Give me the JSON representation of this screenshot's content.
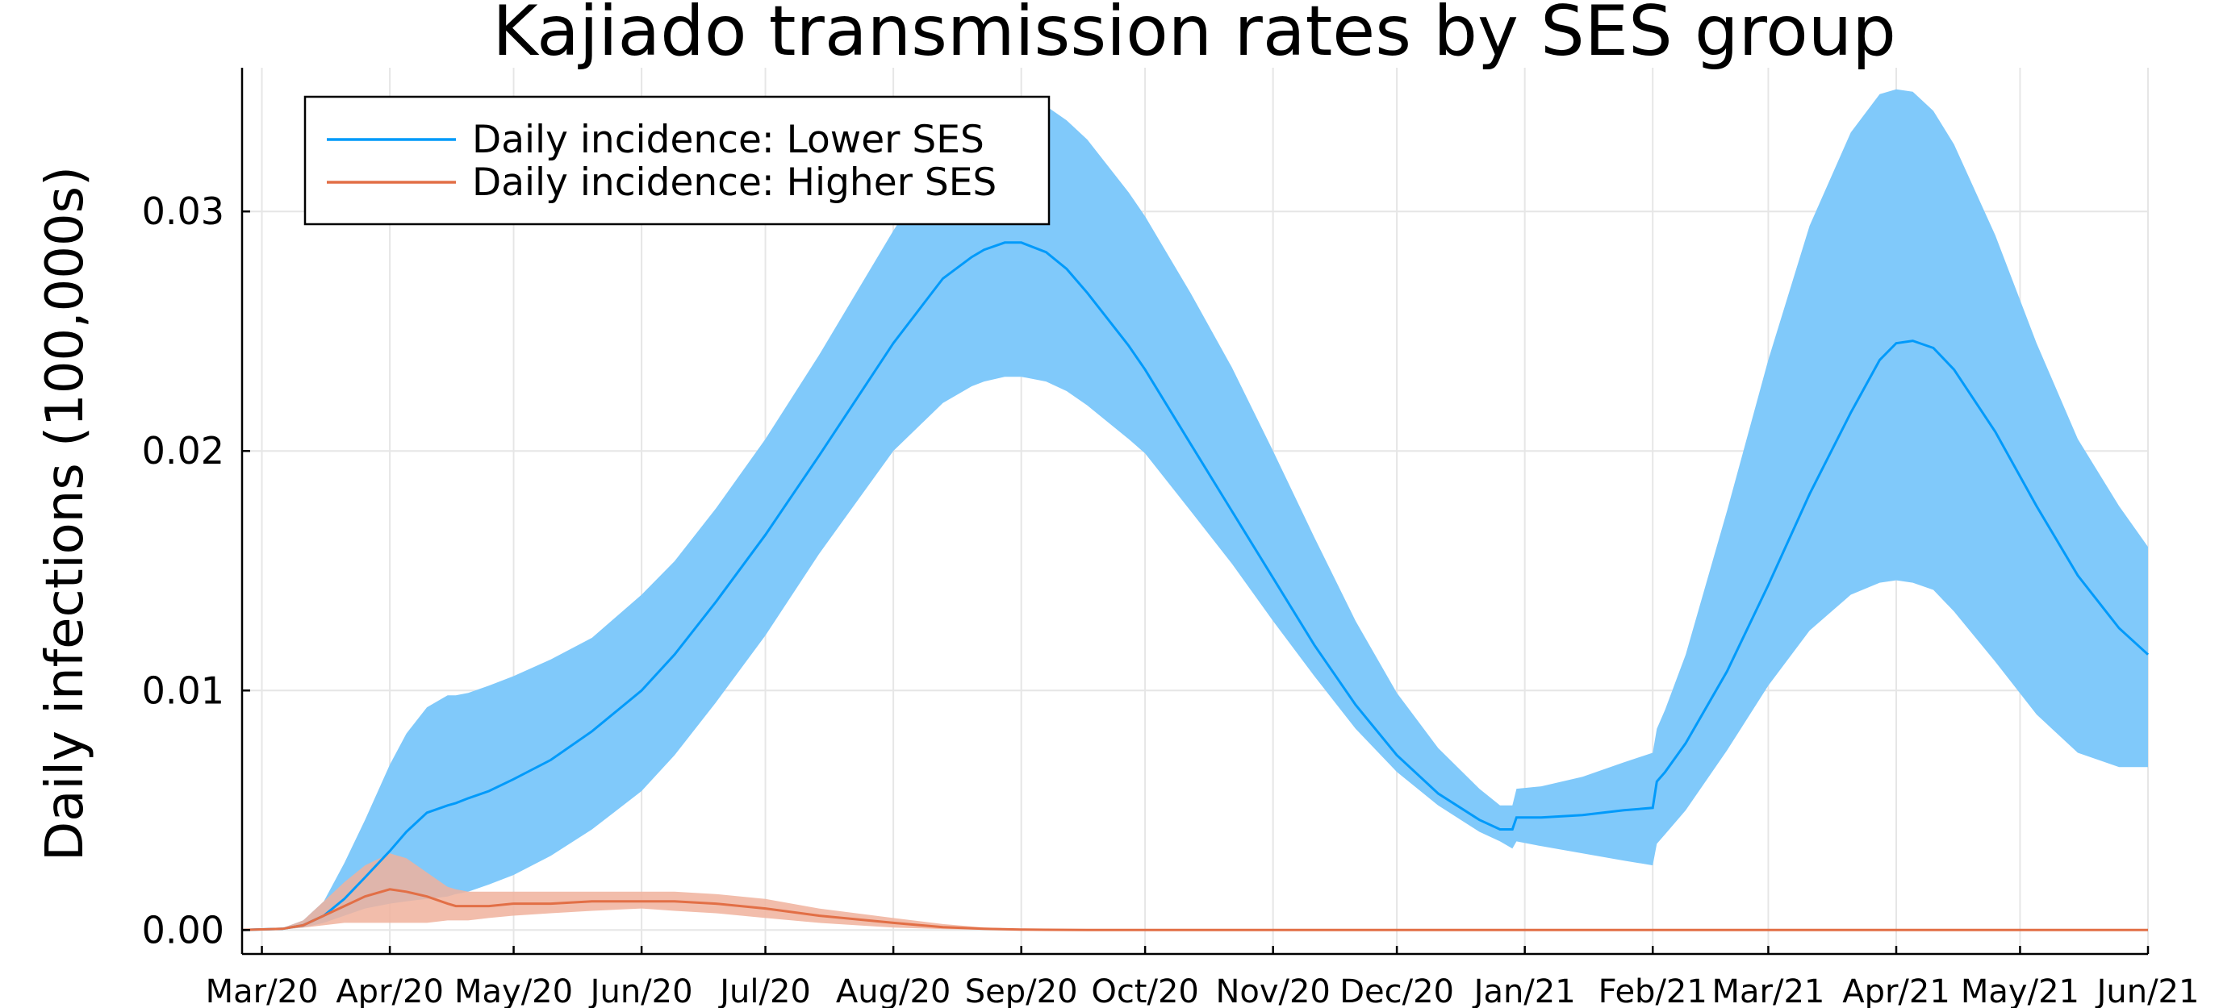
{
  "chart_data": {
    "type": "line",
    "title": "Kajiado transmission rates by SES group",
    "xlabel": "",
    "ylabel": "Daily infections (100,000s)",
    "x_tick_labels": [
      "Mar/20",
      "Apr/20",
      "May/20",
      "Jun/20",
      "Jul/20",
      "Aug/20",
      "Sep/20",
      "Oct/20",
      "Nov/20",
      "Dec/20",
      "Jan/21",
      "Feb/21",
      "Mar/21",
      "Apr/21",
      "May/21",
      "Jun/21"
    ],
    "x_tick_days": [
      0,
      31,
      61,
      92,
      122,
      153,
      184,
      214,
      245,
      275,
      306,
      337,
      365,
      396,
      426,
      457
    ],
    "y_ticks": [
      0.0,
      0.01,
      0.02,
      0.03
    ],
    "y_tick_labels": [
      "0.00",
      "0.01",
      "0.02",
      "0.03"
    ],
    "xlim_days": [
      -4.8,
      457
    ],
    "ylim": [
      -0.001,
      0.036
    ],
    "grid": true,
    "legend_position": "top-left",
    "series": [
      {
        "name": "Daily incidence: Lower SES",
        "color": "#009AFA",
        "band_color": "#80C9FA",
        "x_days": [
          -5,
          5,
          10,
          15,
          20,
          25,
          31,
          35,
          40,
          45,
          47,
          50,
          55,
          61,
          70,
          80,
          92,
          100,
          110,
          122,
          135,
          153,
          165,
          172,
          175,
          180,
          184,
          190,
          195,
          200,
          210,
          214,
          225,
          235,
          245,
          255,
          265,
          275,
          285,
          295,
          300,
          303,
          304,
          310,
          320,
          330,
          337,
          338,
          340,
          345,
          355,
          365,
          375,
          385,
          392,
          396,
          400,
          405,
          410,
          420,
          430,
          440,
          450,
          457
        ],
        "mean": [
          0.0,
          5e-05,
          0.0002,
          0.0006,
          0.0013,
          0.0022,
          0.0033,
          0.0041,
          0.0049,
          0.0052,
          0.0053,
          0.0055,
          0.0058,
          0.0063,
          0.0071,
          0.0083,
          0.01,
          0.0115,
          0.0137,
          0.0165,
          0.0198,
          0.0245,
          0.0272,
          0.0281,
          0.0284,
          0.0287,
          0.0287,
          0.0283,
          0.0276,
          0.0266,
          0.0244,
          0.0234,
          0.0203,
          0.0175,
          0.0147,
          0.0119,
          0.0094,
          0.0073,
          0.0057,
          0.0046,
          0.0042,
          0.0042,
          0.0047,
          0.0047,
          0.0048,
          0.005,
          0.0051,
          0.0062,
          0.0066,
          0.0078,
          0.0108,
          0.0144,
          0.0182,
          0.0216,
          0.0238,
          0.0245,
          0.0246,
          0.0243,
          0.0234,
          0.0208,
          0.0177,
          0.0148,
          0.0126,
          0.0115
        ],
        "lower": [
          0.0,
          3e-05,
          0.0001,
          0.0003,
          0.0006,
          0.0009,
          0.0011,
          0.0012,
          0.0013,
          0.0014,
          0.0015,
          0.0016,
          0.0019,
          0.0023,
          0.0031,
          0.0042,
          0.0058,
          0.0073,
          0.0095,
          0.0123,
          0.0157,
          0.02,
          0.022,
          0.0227,
          0.0229,
          0.0231,
          0.0231,
          0.0229,
          0.0225,
          0.0219,
          0.0205,
          0.0199,
          0.0175,
          0.0153,
          0.0129,
          0.0106,
          0.0084,
          0.0066,
          0.0052,
          0.0041,
          0.0037,
          0.0034,
          0.0037,
          0.0035,
          0.0032,
          0.0029,
          0.0027,
          0.0036,
          0.004,
          0.005,
          0.0075,
          0.0102,
          0.0125,
          0.014,
          0.0145,
          0.0146,
          0.0145,
          0.0142,
          0.0133,
          0.0112,
          0.009,
          0.0074,
          0.0068,
          0.0068
        ],
        "upper": [
          0.0,
          8e-05,
          0.0004,
          0.0012,
          0.0028,
          0.0046,
          0.0069,
          0.0082,
          0.0093,
          0.0098,
          0.0098,
          0.0099,
          0.0102,
          0.0106,
          0.0113,
          0.0122,
          0.014,
          0.0154,
          0.0176,
          0.0205,
          0.024,
          0.0292,
          0.0324,
          0.034,
          0.0344,
          0.0346,
          0.0347,
          0.0344,
          0.0338,
          0.033,
          0.0308,
          0.0298,
          0.0266,
          0.0235,
          0.02,
          0.0164,
          0.0129,
          0.0099,
          0.0076,
          0.0059,
          0.0052,
          0.0052,
          0.0059,
          0.006,
          0.0064,
          0.007,
          0.0074,
          0.0084,
          0.0092,
          0.0115,
          0.0175,
          0.0238,
          0.0294,
          0.0333,
          0.0349,
          0.0351,
          0.035,
          0.0342,
          0.0328,
          0.029,
          0.0245,
          0.0205,
          0.0177,
          0.016
        ]
      },
      {
        "name": "Daily incidence: Higher SES",
        "color": "#E26F46",
        "band_color": "#F0B29C",
        "x_days": [
          -5,
          5,
          10,
          15,
          20,
          25,
          31,
          35,
          40,
          45,
          47,
          50,
          55,
          61,
          70,
          80,
          92,
          100,
          110,
          122,
          135,
          153,
          165,
          175,
          184,
          190,
          200,
          210,
          214,
          225,
          235,
          245,
          255,
          265,
          275,
          285,
          295,
          300,
          303,
          304,
          310,
          320,
          330,
          337,
          338,
          340,
          345,
          355,
          365,
          375,
          385,
          392,
          396,
          400,
          405,
          410,
          420,
          430,
          440,
          450,
          457
        ],
        "mean": [
          0.0,
          5e-05,
          0.0002,
          0.0006,
          0.001,
          0.0014,
          0.0017,
          0.0016,
          0.0014,
          0.0011,
          0.001,
          0.001,
          0.001,
          0.0011,
          0.0011,
          0.0012,
          0.0012,
          0.0012,
          0.0011,
          0.0009,
          0.0006,
          0.0003,
          0.00012,
          5e-05,
          2e-05,
          1e-05,
          0.0,
          0.0,
          0.0,
          0.0,
          0.0,
          0.0,
          0.0,
          0.0,
          0.0,
          0.0,
          0.0,
          0.0,
          0.0,
          0.0,
          0.0,
          0.0,
          0.0,
          0.0,
          0.0,
          0.0,
          0.0,
          0.0,
          0.0,
          0.0,
          0.0,
          0.0,
          0.0,
          0.0,
          0.0,
          0.0,
          0.0,
          0.0,
          0.0,
          0.0,
          0.0
        ],
        "lower": [
          0.0,
          2e-05,
          0.0001,
          0.0002,
          0.0003,
          0.0003,
          0.0003,
          0.0003,
          0.0003,
          0.0004,
          0.0004,
          0.0004,
          0.0005,
          0.0006,
          0.0007,
          0.0008,
          0.0009,
          0.0008,
          0.0007,
          0.0005,
          0.0003,
          0.0001,
          4e-05,
          1e-05,
          0.0,
          0.0,
          0.0,
          0.0,
          0.0,
          0.0,
          0.0,
          0.0,
          0.0,
          0.0,
          0.0,
          0.0,
          0.0,
          0.0,
          0.0,
          0.0,
          0.0,
          0.0,
          0.0,
          0.0,
          0.0,
          0.0,
          0.0,
          0.0,
          0.0,
          0.0,
          0.0,
          0.0,
          0.0,
          0.0,
          0.0,
          0.0,
          0.0,
          0.0,
          0.0,
          0.0,
          0.0
        ],
        "upper": [
          0.0,
          8e-05,
          0.0004,
          0.0012,
          0.002,
          0.0027,
          0.0032,
          0.003,
          0.0024,
          0.0018,
          0.0017,
          0.0016,
          0.0016,
          0.0016,
          0.0016,
          0.0016,
          0.0016,
          0.0016,
          0.0015,
          0.0013,
          0.0009,
          0.0005,
          0.00025,
          0.0001,
          5e-05,
          2e-05,
          0.0,
          0.0,
          0.0,
          0.0,
          0.0,
          0.0,
          0.0,
          0.0,
          0.0,
          0.0,
          0.0,
          0.0,
          0.0,
          0.0,
          0.0,
          0.0,
          0.0,
          0.0,
          0.0,
          0.0,
          0.0,
          0.0,
          0.0,
          0.0,
          0.0,
          0.0,
          0.0,
          0.0,
          0.0,
          0.0,
          0.0,
          0.0,
          0.0,
          0.0,
          0.0
        ]
      }
    ]
  }
}
